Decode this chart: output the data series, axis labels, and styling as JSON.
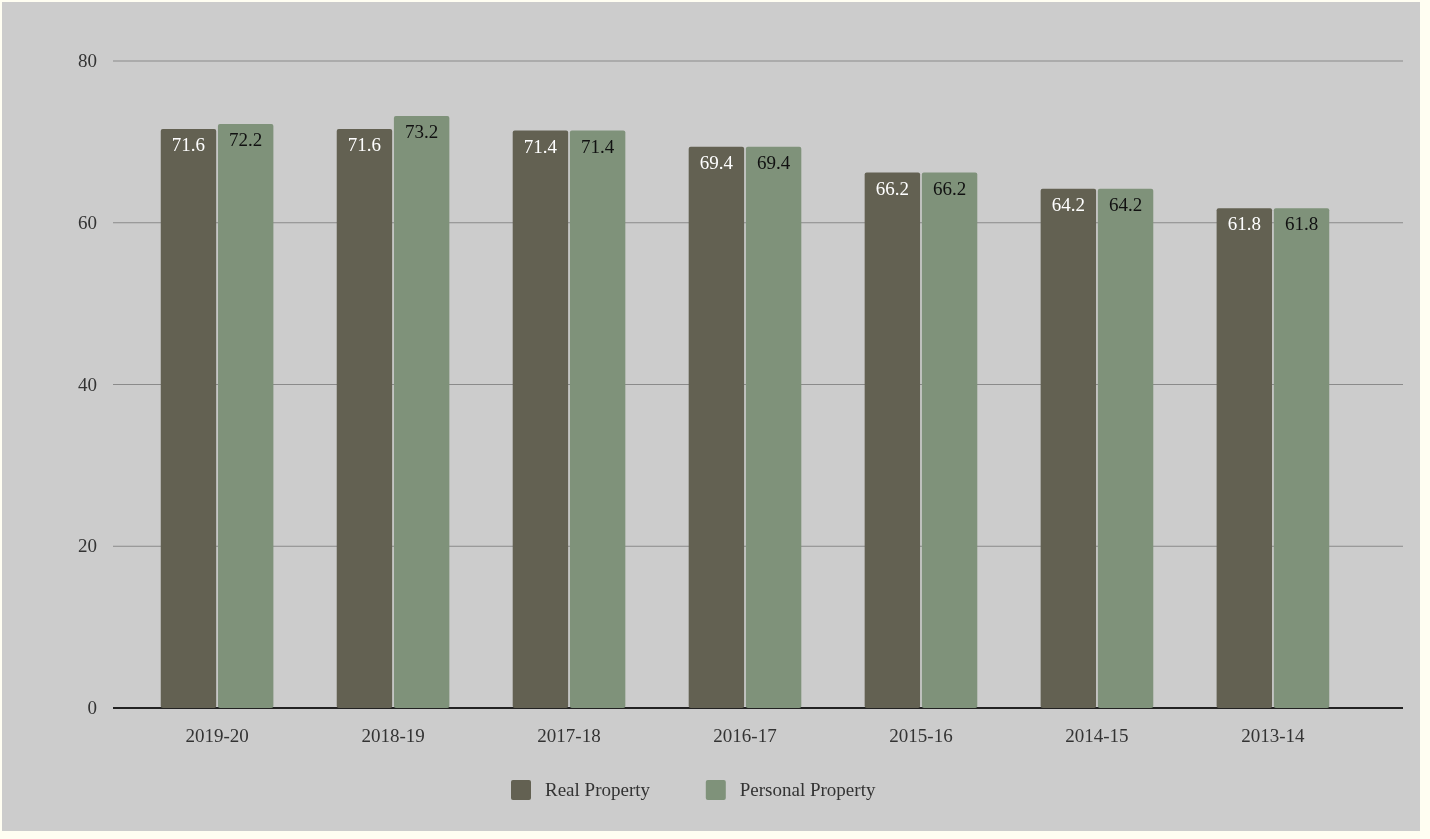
{
  "chart_data": {
    "type": "bar",
    "categories": [
      "2019-20",
      "2018-19",
      "2017-18",
      "2016-17",
      "2015-16",
      "2014-15",
      "2013-14"
    ],
    "series": [
      {
        "name": "Real Property",
        "color": "#636152",
        "values": [
          71.6,
          71.6,
          71.4,
          69.4,
          66.2,
          64.2,
          61.8
        ]
      },
      {
        "name": "Personal Property",
        "color": "#7f927a",
        "values": [
          72.2,
          73.2,
          71.4,
          69.4,
          66.2,
          64.2,
          61.8
        ]
      }
    ],
    "ylim": [
      0,
      80
    ],
    "yticks": [
      0,
      20,
      40,
      60,
      80
    ],
    "grid": "y",
    "legend": "bottom",
    "data_labels": true
  }
}
